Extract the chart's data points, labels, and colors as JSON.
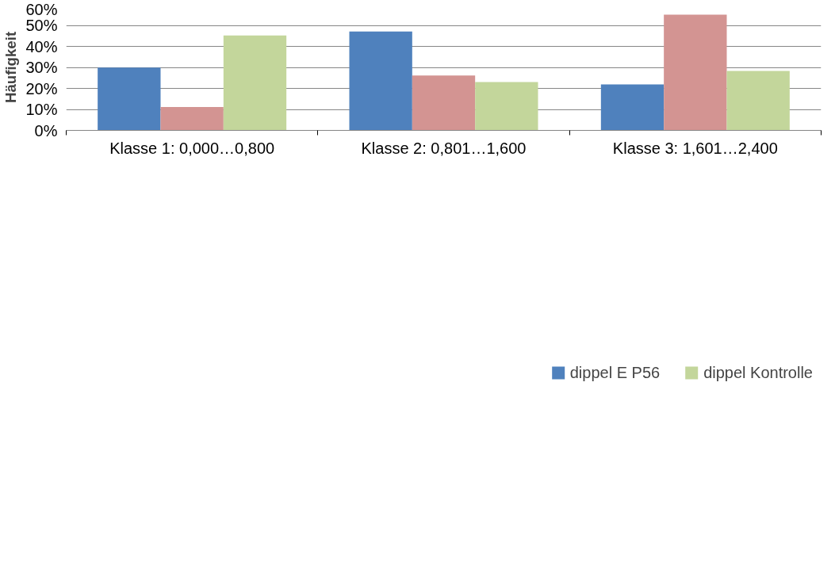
{
  "chart_data": {
    "type": "bar",
    "ylabel": "Häufigkeit",
    "categories": [
      "Klasse 1: 0,000…0,800",
      "Klasse 2: 0,801…1,600",
      "Klasse 3: 1,601…2,400"
    ],
    "series": [
      {
        "name": "dippel E P56",
        "color": "#4f81bd",
        "values": [
          29.9,
          47.1,
          21.9
        ]
      },
      {
        "color": "#d39492",
        "values": [
          11.1,
          26.1,
          55.1
        ]
      },
      {
        "name": "dippel Kontrolle",
        "color": "#c3d69b",
        "values": [
          45.2,
          23.0,
          28.3
        ]
      }
    ],
    "ylim": [
      0,
      60
    ],
    "yticks": [
      {
        "value": 0,
        "label": "0%"
      },
      {
        "value": 10,
        "label": "10%"
      },
      {
        "value": 20,
        "label": "20%"
      },
      {
        "value": 30,
        "label": "30%"
      },
      {
        "value": 40,
        "label": "40%"
      },
      {
        "value": 50,
        "label": "50%"
      },
      {
        "value": 60,
        "label": "60%"
      }
    ],
    "grid": "y",
    "legend": "bottom"
  }
}
